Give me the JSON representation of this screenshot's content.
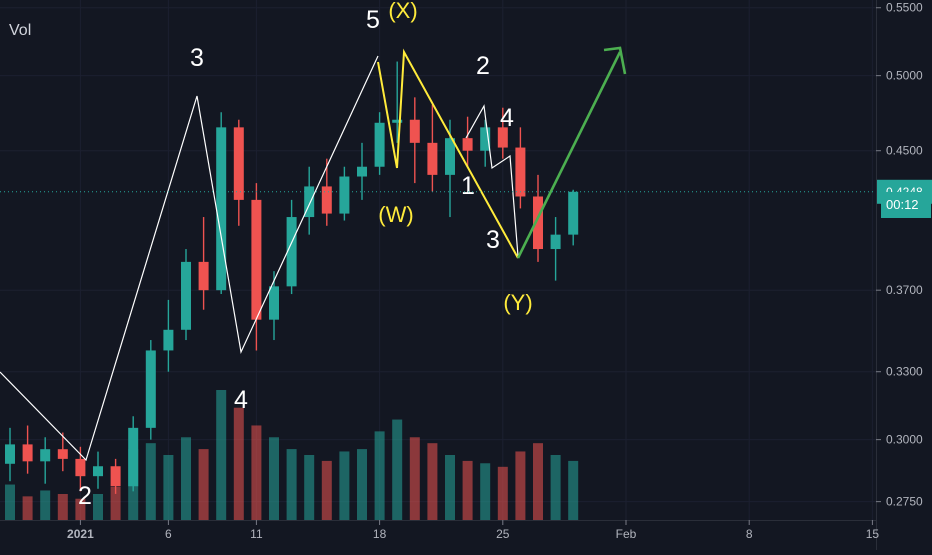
{
  "indicator": {
    "label": "Vol"
  },
  "price_axis": {
    "ticks": [
      "0.5500",
      "0.5000",
      "0.4500",
      "0.3700",
      "0.3300",
      "0.3000",
      "0.2750"
    ],
    "current_price": "0.4248",
    "countdown": "00:12"
  },
  "time_axis": {
    "ticks": [
      "2021",
      "6",
      "11",
      "18",
      "25",
      "Feb",
      "8",
      "15"
    ]
  },
  "annotations": {
    "white_labels": [
      "3",
      "5",
      "2",
      "4",
      "1",
      "3",
      "4",
      "2"
    ],
    "yellow_labels": [
      "(X)",
      "(W)",
      "(Y)"
    ]
  },
  "colors": {
    "background": "#131722",
    "up": "#26a69a",
    "down": "#ef5350",
    "annotation_white": "#ffffff",
    "annotation_yellow": "#ffeb3b",
    "projection": "#4caf50",
    "current_price_badge": "#26a69a"
  },
  "chart_data": {
    "type": "candlestick",
    "scale": "log",
    "title": "",
    "xlabel": "",
    "ylabel": "",
    "x_range": [
      "2020-12-28",
      "2021-02-18"
    ],
    "y_range": [
      0.26,
      0.56
    ],
    "candles": [
      {
        "t": "2020-12-28",
        "o": 0.29,
        "h": 0.305,
        "l": 0.283,
        "c": 0.298
      },
      {
        "t": "2020-12-29",
        "o": 0.298,
        "h": 0.306,
        "l": 0.286,
        "c": 0.291
      },
      {
        "t": "2020-12-30",
        "o": 0.291,
        "h": 0.301,
        "l": 0.282,
        "c": 0.296
      },
      {
        "t": "2020-12-31",
        "o": 0.296,
        "h": 0.303,
        "l": 0.287,
        "c": 0.292
      },
      {
        "t": "2021-01-01",
        "o": 0.292,
        "h": 0.297,
        "l": 0.279,
        "c": 0.285
      },
      {
        "t": "2021-01-02",
        "o": 0.285,
        "h": 0.295,
        "l": 0.28,
        "c": 0.289
      },
      {
        "t": "2021-01-03",
        "o": 0.289,
        "h": 0.292,
        "l": 0.278,
        "c": 0.281
      },
      {
        "t": "2021-01-04",
        "o": 0.281,
        "h": 0.31,
        "l": 0.279,
        "c": 0.305
      },
      {
        "t": "2021-01-05",
        "o": 0.305,
        "h": 0.345,
        "l": 0.3,
        "c": 0.34
      },
      {
        "t": "2021-01-06",
        "o": 0.34,
        "h": 0.365,
        "l": 0.33,
        "c": 0.35
      },
      {
        "t": "2021-01-07",
        "o": 0.35,
        "h": 0.392,
        "l": 0.345,
        "c": 0.385
      },
      {
        "t": "2021-01-08",
        "o": 0.385,
        "h": 0.41,
        "l": 0.36,
        "c": 0.37
      },
      {
        "t": "2021-01-09",
        "o": 0.37,
        "h": 0.475,
        "l": 0.368,
        "c": 0.465
      },
      {
        "t": "2021-01-10",
        "o": 0.465,
        "h": 0.47,
        "l": 0.405,
        "c": 0.42
      },
      {
        "t": "2021-01-11",
        "o": 0.42,
        "h": 0.43,
        "l": 0.34,
        "c": 0.355
      },
      {
        "t": "2021-01-12",
        "o": 0.355,
        "h": 0.38,
        "l": 0.345,
        "c": 0.372
      },
      {
        "t": "2021-01-13",
        "o": 0.372,
        "h": 0.42,
        "l": 0.368,
        "c": 0.41
      },
      {
        "t": "2021-01-14",
        "o": 0.41,
        "h": 0.44,
        "l": 0.4,
        "c": 0.428
      },
      {
        "t": "2021-01-15",
        "o": 0.428,
        "h": 0.445,
        "l": 0.405,
        "c": 0.412
      },
      {
        "t": "2021-01-16",
        "o": 0.412,
        "h": 0.44,
        "l": 0.408,
        "c": 0.434
      },
      {
        "t": "2021-01-17",
        "o": 0.434,
        "h": 0.455,
        "l": 0.42,
        "c": 0.44
      },
      {
        "t": "2021-01-18",
        "o": 0.44,
        "h": 0.475,
        "l": 0.435,
        "c": 0.468
      },
      {
        "t": "2021-01-19",
        "o": 0.468,
        "h": 0.51,
        "l": 0.455,
        "c": 0.47
      },
      {
        "t": "2021-01-20",
        "o": 0.47,
        "h": 0.485,
        "l": 0.43,
        "c": 0.455
      },
      {
        "t": "2021-01-21",
        "o": 0.455,
        "h": 0.48,
        "l": 0.425,
        "c": 0.435
      },
      {
        "t": "2021-01-22",
        "o": 0.435,
        "h": 0.47,
        "l": 0.41,
        "c": 0.458
      },
      {
        "t": "2021-01-23",
        "o": 0.458,
        "h": 0.472,
        "l": 0.44,
        "c": 0.45
      },
      {
        "t": "2021-01-24",
        "o": 0.45,
        "h": 0.47,
        "l": 0.44,
        "c": 0.465
      },
      {
        "t": "2021-01-25",
        "o": 0.465,
        "h": 0.478,
        "l": 0.445,
        "c": 0.452
      },
      {
        "t": "2021-01-26",
        "o": 0.452,
        "h": 0.465,
        "l": 0.415,
        "c": 0.422
      },
      {
        "t": "2021-01-27",
        "o": 0.422,
        "h": 0.435,
        "l": 0.385,
        "c": 0.392
      },
      {
        "t": "2021-01-28",
        "o": 0.392,
        "h": 0.41,
        "l": 0.375,
        "c": 0.4
      },
      {
        "t": "2021-01-29",
        "o": 0.4,
        "h": 0.426,
        "l": 0.394,
        "c": 0.4248
      }
    ],
    "volume": [
      30,
      20,
      25,
      22,
      18,
      22,
      28,
      60,
      65,
      55,
      70,
      60,
      110,
      95,
      80,
      70,
      60,
      55,
      50,
      58,
      60,
      75,
      85,
      70,
      65,
      55,
      50,
      48,
      45,
      58,
      65,
      55,
      50
    ]
  }
}
